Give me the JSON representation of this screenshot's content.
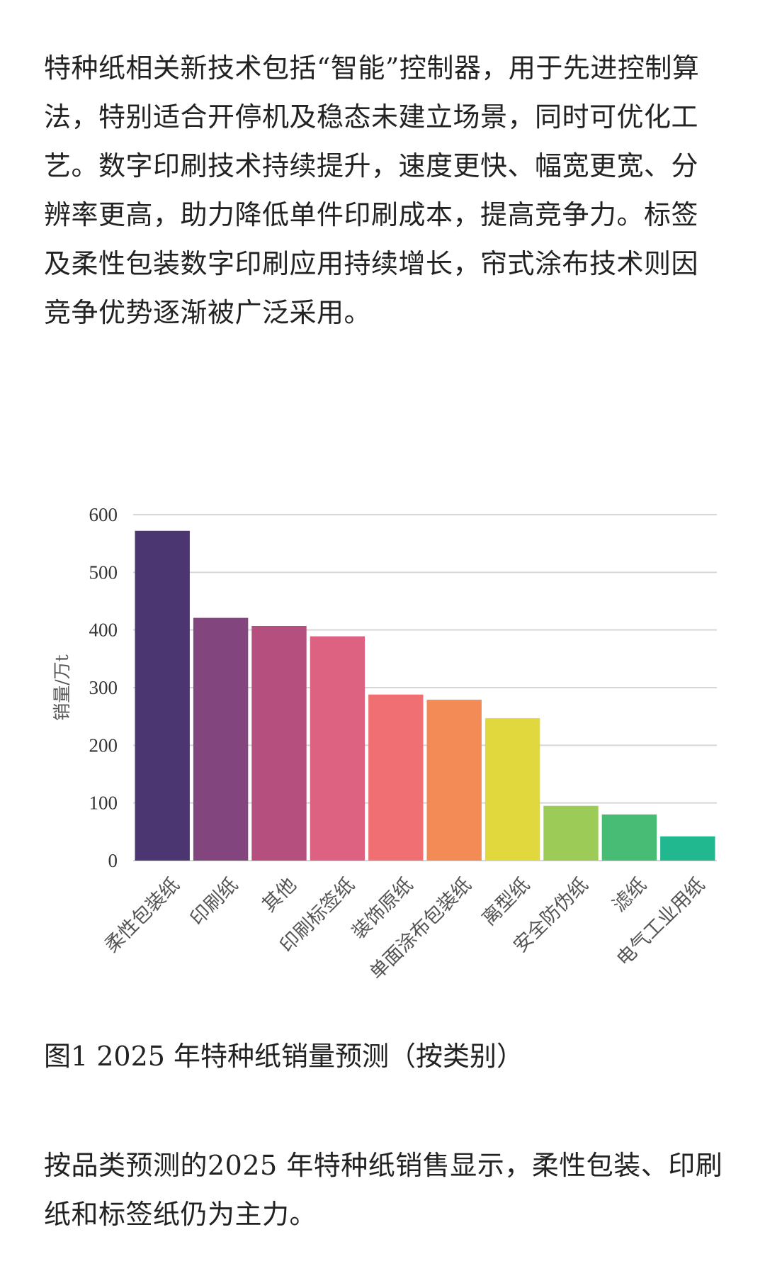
{
  "article": {
    "paragraph_top": "特种纸相关新技术包括“智能”控制器，用于先进控制算法，特别适合开停机及稳态未建立场景，同时可优化工艺。数字印刷技术持续提升，速度更快、幅宽更宽、分辨率更高，助力降低单件印刷成本，提高竞争力。标签及柔性包装数字印刷应用持续增长，帘式涂布技术则因竞争优势逐渐被广泛采用。",
    "caption": "图1 2025 年特种纸销量预测（按类别）",
    "paragraph_bottom": "按品类预测的2025 年特种纸销售显示，柔性包装、印刷纸和标签纸仍为主力。"
  },
  "chart_data": {
    "type": "bar",
    "categories": [
      "柔性包装纸",
      "印刷纸",
      "其他",
      "印刷标签纸",
      "装饰原纸",
      "单面涂布包装纸",
      "离型纸",
      "安全防伪纸",
      "滤纸",
      "电气工业用纸"
    ],
    "values": [
      572,
      421,
      407,
      389,
      288,
      279,
      247,
      95,
      80,
      42
    ],
    "colors": [
      "#4b3672",
      "#82457e",
      "#b5507e",
      "#dd6180",
      "#ef6f72",
      "#f28b56",
      "#e1d83e",
      "#9ccb58",
      "#48bb74",
      "#22b88f"
    ],
    "title": "",
    "xlabel": "",
    "ylabel": "销量/万t",
    "ylim": [
      0,
      600
    ],
    "yticks": [
      0,
      100,
      200,
      300,
      400,
      500,
      600
    ],
    "grid": true
  }
}
